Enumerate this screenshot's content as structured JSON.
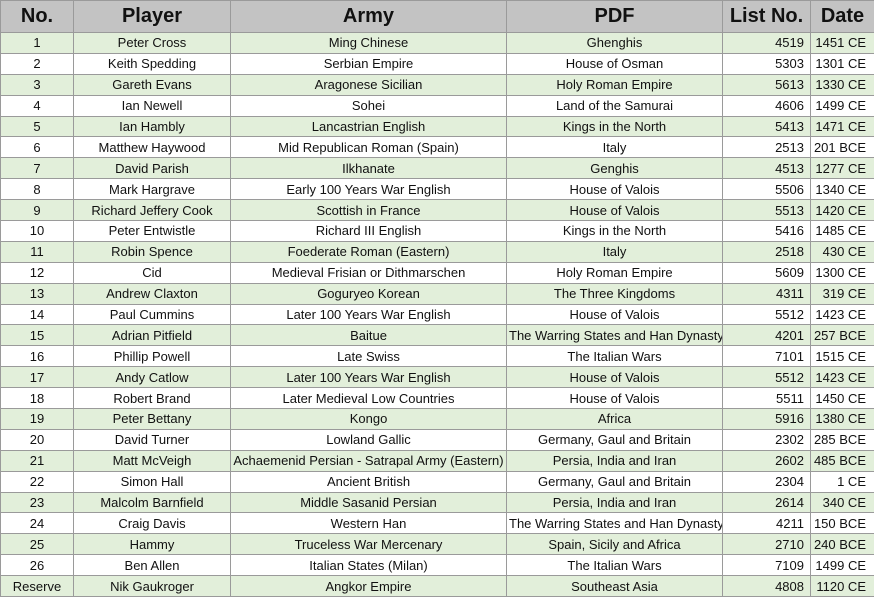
{
  "table": {
    "header": [
      "No.",
      "Player",
      "Army",
      "PDF",
      "List No.",
      "Date"
    ],
    "rows": [
      [
        "1",
        "Peter Cross",
        "Ming Chinese",
        "Ghenghis",
        "4519",
        "1451 CE"
      ],
      [
        "2",
        "Keith Spedding",
        "Serbian Empire",
        "House of Osman",
        "5303",
        "1301 CE"
      ],
      [
        "3",
        "Gareth Evans",
        "Aragonese Sicilian",
        "Holy Roman Empire",
        "5613",
        "1330 CE"
      ],
      [
        "4",
        "Ian Newell",
        "Sohei",
        "Land of the Samurai",
        "4606",
        "1499 CE"
      ],
      [
        "5",
        "Ian Hambly",
        "Lancastrian English",
        "Kings in the North",
        "5413",
        "1471 CE"
      ],
      [
        "6",
        "Matthew Haywood",
        "Mid Republican Roman (Spain)",
        "Italy",
        "2513",
        "201 BCE"
      ],
      [
        "7",
        "David Parish",
        "Ilkhanate",
        "Genghis",
        "4513",
        "1277 CE"
      ],
      [
        "8",
        "Mark Hargrave",
        "Early 100 Years War English",
        "House of Valois",
        "5506",
        "1340 CE"
      ],
      [
        "9",
        "Richard Jeffery Cook",
        "Scottish in France",
        "House of Valois",
        "5513",
        "1420 CE"
      ],
      [
        "10",
        "Peter Entwistle",
        "Richard III English",
        "Kings in the North",
        "5416",
        "1485 CE"
      ],
      [
        "11",
        "Robin Spence",
        "Foederate Roman (Eastern)",
        "Italy",
        "2518",
        "430 CE"
      ],
      [
        "12",
        "Cid",
        "Medieval Frisian or Dithmarschen",
        "Holy Roman Empire",
        "5609",
        "1300 CE"
      ],
      [
        "13",
        "Andrew Claxton",
        "Goguryeo Korean",
        "The Three Kingdoms",
        "4311",
        "319 CE"
      ],
      [
        "14",
        "Paul Cummins",
        "Later 100 Years War English",
        "House of Valois",
        "5512",
        "1423 CE"
      ],
      [
        "15",
        "Adrian Pitfield",
        "Baitue",
        "The Warring States and Han Dynasty",
        "4201",
        "257 BCE"
      ],
      [
        "16",
        "Phillip Powell",
        "Late Swiss",
        "The Italian Wars",
        "7101",
        "1515 CE"
      ],
      [
        "17",
        "Andy Catlow",
        "Later 100 Years War English",
        "House of Valois",
        "5512",
        "1423 CE"
      ],
      [
        "18",
        "Robert Brand",
        "Later Medieval Low Countries",
        "House of Valois",
        "5511",
        "1450 CE"
      ],
      [
        "19",
        "Peter Bettany",
        "Kongo",
        "Africa",
        "5916",
        "1380 CE"
      ],
      [
        "20",
        "David Turner",
        "Lowland Gallic",
        "Germany, Gaul and Britain",
        "2302",
        "285 BCE"
      ],
      [
        "21",
        "Matt McVeigh",
        "Achaemenid Persian - Satrapal Army (Eastern)",
        "Persia, India and Iran",
        "2602",
        "485 BCE"
      ],
      [
        "22",
        "Simon Hall",
        "Ancient British",
        "Germany, Gaul and Britain",
        "2304",
        "1 CE"
      ],
      [
        "23",
        "Malcolm Barnfield",
        "Middle Sasanid Persian",
        "Persia, India and Iran",
        "2614",
        "340 CE"
      ],
      [
        "24",
        "Craig Davis",
        "Western Han",
        "The Warring States and Han Dynasty",
        "4211",
        "150 BCE"
      ],
      [
        "25",
        "Hammy",
        "Truceless War Mercenary",
        "Spain, Sicily and Africa",
        "2710",
        "240 BCE"
      ],
      [
        "26",
        "Ben Allen",
        "Italian States (Milan)",
        "The Italian Wars",
        "7109",
        "1499 CE"
      ],
      [
        "Reserve",
        "Nik Gaukroger",
        "Angkor Empire",
        "Southeast Asia",
        "4808",
        "1120 CE"
      ]
    ]
  }
}
